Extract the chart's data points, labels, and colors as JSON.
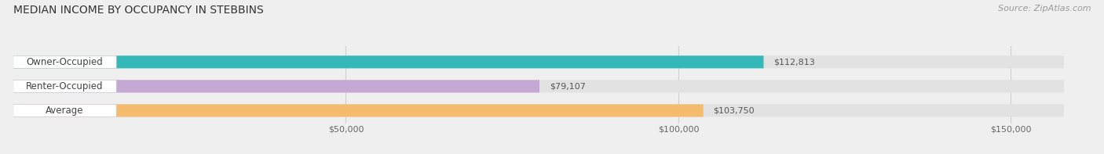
{
  "title": "MEDIAN INCOME BY OCCUPANCY IN STEBBINS",
  "source": "Source: ZipAtlas.com",
  "categories": [
    "Owner-Occupied",
    "Renter-Occupied",
    "Average"
  ],
  "values": [
    112813,
    79107,
    103750
  ],
  "bar_colors": [
    "#35b8b8",
    "#c5a8d4",
    "#f5bc6e"
  ],
  "label_texts": [
    "$112,813",
    "$79,107",
    "$103,750"
  ],
  "x_tick_labels": [
    "$50,000",
    "$100,000",
    "$150,000"
  ],
  "x_tick_vals": [
    50000,
    100000,
    150000
  ],
  "xlim": [
    0,
    162000
  ],
  "background_color": "#efefef",
  "bar_bg_color": "#e2e2e2",
  "title_fontsize": 10,
  "source_fontsize": 8,
  "label_fontsize": 8,
  "category_fontsize": 8.5,
  "tick_fontsize": 8
}
